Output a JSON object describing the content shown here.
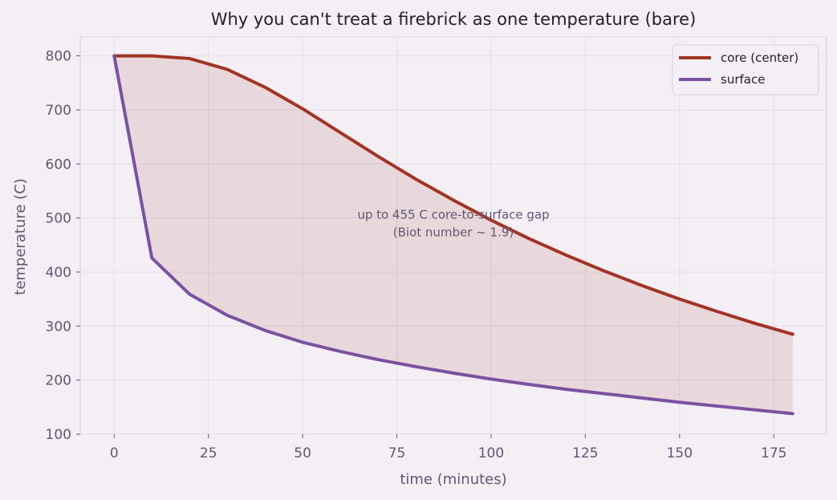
{
  "chart_data": {
    "type": "line",
    "title": "Why you can't treat a firebrick as one temperature (bare)",
    "xlabel": "time (minutes)",
    "ylabel": "temperature (C)",
    "xlim": [
      -9,
      189
    ],
    "ylim": [
      100,
      835
    ],
    "xticks": [
      0,
      25,
      50,
      75,
      100,
      125,
      150,
      175
    ],
    "yticks": [
      100,
      200,
      300,
      400,
      500,
      600,
      700,
      800
    ],
    "grid": true,
    "legend_position": "top-right",
    "x": [
      0,
      10,
      20,
      30,
      40,
      50,
      60,
      70,
      80,
      90,
      100,
      110,
      120,
      130,
      140,
      150,
      160,
      170,
      180
    ],
    "series": [
      {
        "name": "core (center)",
        "color": "#a23423",
        "values": [
          800,
          800,
          795,
          775,
          742,
          702,
          658,
          614,
          572,
          533,
          496,
          462,
          431,
          402,
          375,
          350,
          327,
          305,
          285
        ]
      },
      {
        "name": "surface",
        "color": "#7a52a0",
        "values": [
          800,
          426,
          359,
          320,
          292,
          270,
          253,
          238,
          225,
          213,
          202,
          192,
          183,
          175,
          167,
          159,
          152,
          145,
          138
        ]
      }
    ],
    "fill_between": {
      "series": [
        "core (center)",
        "surface"
      ],
      "color": "#a23423",
      "opacity": 0.12
    },
    "annotation": {
      "lines": [
        "up to 455 C core-to-surface gap",
        "(Biot number ~ 1.9)"
      ],
      "x": 90,
      "y": 500
    }
  }
}
